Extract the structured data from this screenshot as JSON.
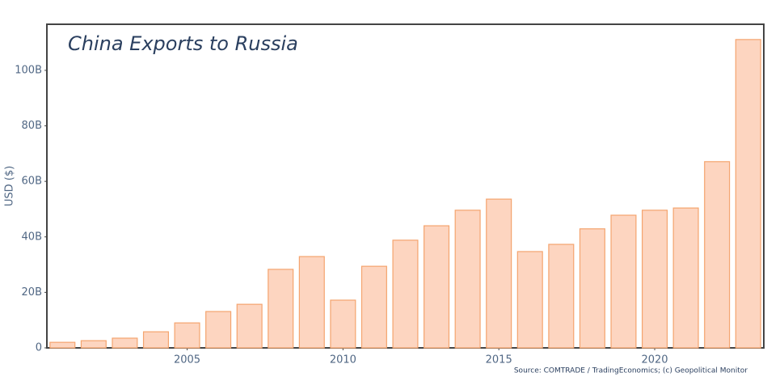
{
  "chart_data": {
    "type": "bar",
    "title": "China Exports to Russia",
    "y_label": "USD ($)",
    "source": "Source: COMTRADE / TradingEconomics; (c) Geopolitical Monitor",
    "x": [
      2001,
      2002,
      2003,
      2004,
      2005,
      2006,
      2007,
      2008,
      2009,
      2010,
      2011,
      2012,
      2013,
      2014,
      2015,
      2016,
      2017,
      2018,
      2019,
      2020,
      2021,
      2022,
      2023
    ],
    "values": [
      2000000000,
      2600000000,
      3500000000,
      5800000000,
      9000000000,
      13100000000,
      15700000000,
      28300000000,
      32900000000,
      17200000000,
      29400000000,
      38800000000,
      44000000000,
      49600000000,
      53600000000,
      34700000000,
      37300000000,
      42900000000,
      47800000000,
      49600000000,
      50400000000,
      67100000000,
      111100000000
    ],
    "color": "#fdd5c0",
    "edge_color": "#f4a46e",
    "xlim": [
      2000.5,
      2023.5
    ],
    "xticks": [
      2005,
      2010,
      2015,
      2020
    ],
    "ylim": [
      0,
      116600000000
    ],
    "yticks": [
      {
        "value": 0,
        "label": "0"
      },
      {
        "value": 20000000000,
        "label": "20B"
      },
      {
        "value": 40000000000,
        "label": "40B"
      },
      {
        "value": 60000000000,
        "label": "60B"
      },
      {
        "value": 80000000000,
        "label": "80B"
      },
      {
        "value": 100000000000,
        "label": "100B"
      }
    ],
    "grid": false
  }
}
